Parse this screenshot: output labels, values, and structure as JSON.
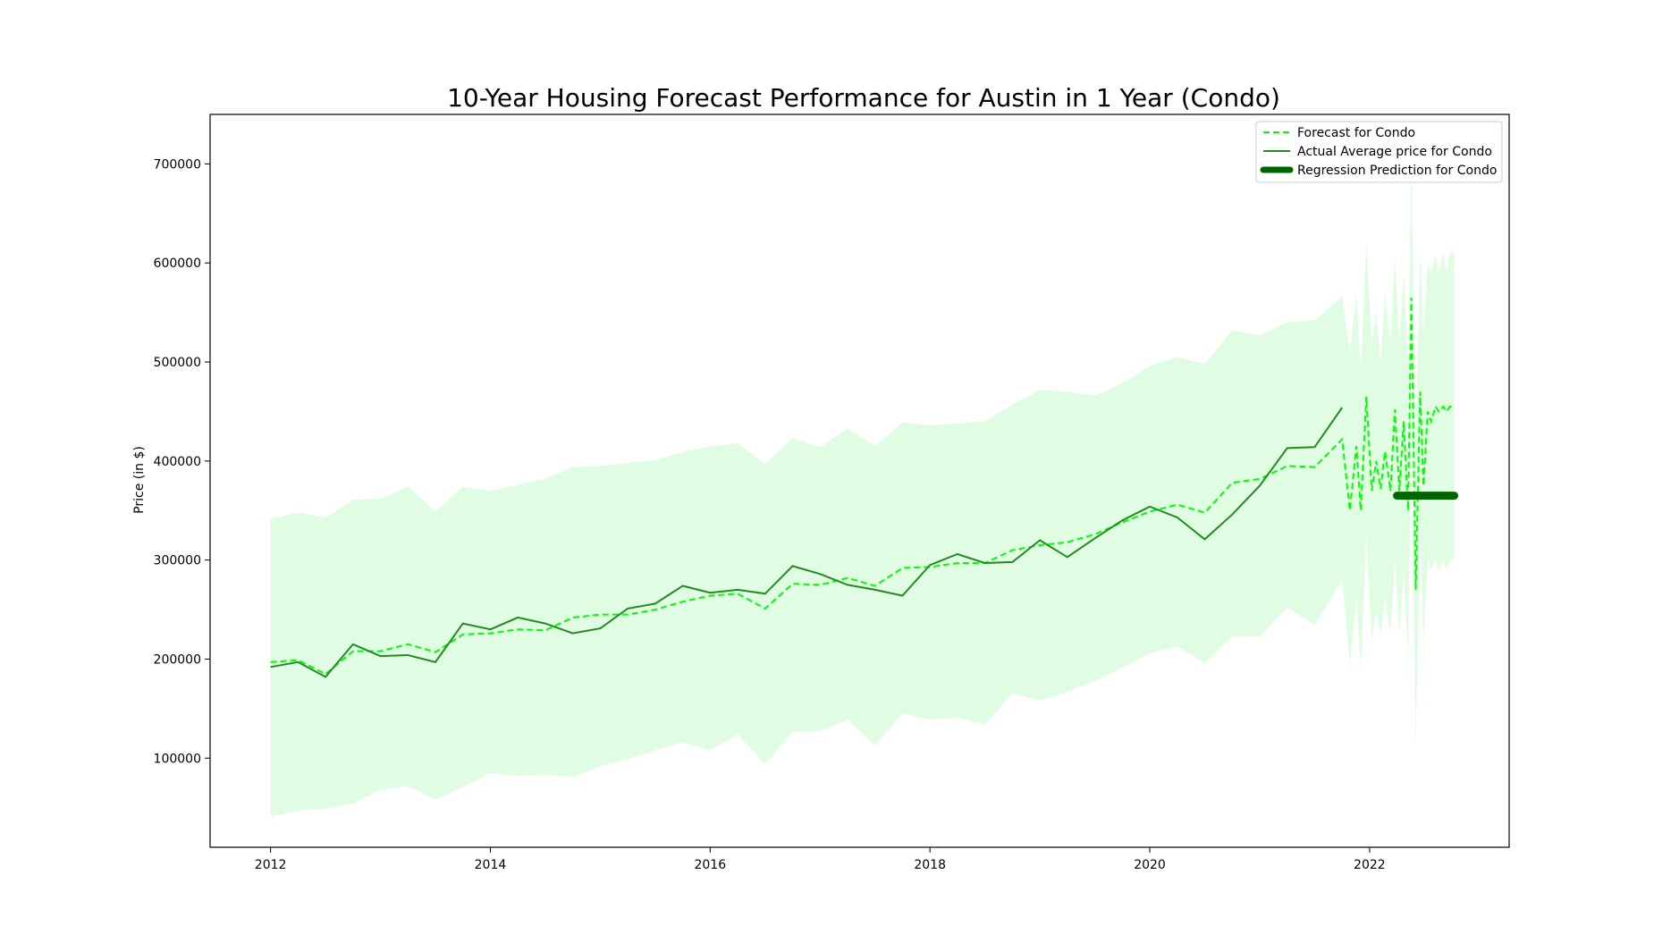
{
  "chart_data": {
    "type": "line",
    "title": "10-Year Housing Forecast Performance for Austin in 1 Year (Condo)",
    "xlabel": "",
    "ylabel": "Price (in $)",
    "xlim": [
      2011.45,
      2023.27
    ],
    "ylim": [
      10000,
      750000
    ],
    "x_ticks": [
      2012,
      2014,
      2016,
      2018,
      2020,
      2022
    ],
    "y_ticks": [
      100000,
      200000,
      300000,
      400000,
      500000,
      600000,
      700000
    ],
    "grid": false,
    "legend_position": "top-right",
    "colors": {
      "forecast": "#00ff00",
      "actual": "#228b22",
      "regression": "#006400",
      "band": "#e0fde3"
    },
    "series": [
      {
        "name": "Forecast for Condo",
        "style": "dashed",
        "x": [
          2012.0,
          2012.25,
          2012.5,
          2012.75,
          2013.0,
          2013.25,
          2013.5,
          2013.75,
          2014.0,
          2014.25,
          2014.5,
          2014.75,
          2015.0,
          2015.25,
          2015.5,
          2015.75,
          2016.0,
          2016.25,
          2016.5,
          2016.75,
          2017.0,
          2017.25,
          2017.5,
          2017.75,
          2018.0,
          2018.25,
          2018.5,
          2018.75,
          2019.0,
          2019.25,
          2019.5,
          2019.75,
          2020.0,
          2020.25,
          2020.5,
          2020.75,
          2021.0,
          2021.25,
          2021.5,
          2021.75,
          2021.82,
          2021.88,
          2021.92,
          2021.97,
          2022.02,
          2022.06,
          2022.1,
          2022.14,
          2022.19,
          2022.23,
          2022.27,
          2022.31,
          2022.35,
          2022.38,
          2022.42,
          2022.46,
          2022.49,
          2022.53,
          2022.56,
          2022.6,
          2022.63,
          2022.67,
          2022.7,
          2022.73,
          2022.77
        ],
        "values": [
          197000,
          199000,
          185000,
          208000,
          208000,
          215000,
          207000,
          225000,
          226000,
          230000,
          229000,
          242000,
          245000,
          245000,
          250000,
          258000,
          264000,
          266000,
          251000,
          276000,
          275000,
          282000,
          274000,
          292000,
          293000,
          297000,
          297000,
          310000,
          315000,
          318000,
          326000,
          338000,
          349000,
          356000,
          348000,
          378000,
          382000,
          395000,
          394000,
          422000,
          350000,
          415000,
          350000,
          465000,
          370000,
          400000,
          372000,
          410000,
          370000,
          452000,
          370000,
          440000,
          350000,
          565000,
          270000,
          470000,
          375000,
          450000,
          440000,
          455000,
          450000,
          455000,
          450000,
          455000,
          455000
        ]
      },
      {
        "name": "Actual Average price for Condo",
        "style": "solid",
        "x": [
          2012.0,
          2012.25,
          2012.5,
          2012.75,
          2013.0,
          2013.25,
          2013.5,
          2013.75,
          2014.0,
          2014.25,
          2014.5,
          2014.75,
          2015.0,
          2015.25,
          2015.5,
          2015.75,
          2016.0,
          2016.25,
          2016.5,
          2016.75,
          2017.0,
          2017.25,
          2017.5,
          2017.75,
          2018.0,
          2018.25,
          2018.5,
          2018.75,
          2019.0,
          2019.25,
          2019.5,
          2019.75,
          2020.0,
          2020.25,
          2020.5,
          2020.75,
          2021.0,
          2021.25,
          2021.5,
          2021.75
        ],
        "values": [
          192000,
          197000,
          182000,
          215000,
          203000,
          204000,
          197000,
          236000,
          230000,
          242000,
          236000,
          226000,
          231000,
          251000,
          256000,
          274000,
          267000,
          270000,
          266000,
          294000,
          286000,
          275000,
          270000,
          264000,
          295000,
          306000,
          297000,
          298000,
          320000,
          303000,
          322000,
          340000,
          354000,
          343000,
          321000,
          346000,
          375000,
          413000,
          414000,
          454000
        ]
      },
      {
        "name": "Regression Prediction for Condo",
        "style": "thick",
        "x": [
          2022.25,
          2022.77
        ],
        "values": [
          365000,
          365000
        ]
      }
    ],
    "confidence_band": {
      "x": [
        2012.0,
        2012.25,
        2012.5,
        2012.75,
        2013.0,
        2013.25,
        2013.5,
        2013.75,
        2014.0,
        2014.25,
        2014.5,
        2014.75,
        2015.0,
        2015.25,
        2015.5,
        2015.75,
        2016.0,
        2016.25,
        2016.5,
        2016.75,
        2017.0,
        2017.25,
        2017.5,
        2017.75,
        2018.0,
        2018.25,
        2018.5,
        2018.75,
        2019.0,
        2019.25,
        2019.5,
        2019.75,
        2020.0,
        2020.25,
        2020.5,
        2020.75,
        2021.0,
        2021.25,
        2021.5,
        2021.75,
        2021.82,
        2021.88,
        2021.92,
        2021.97,
        2022.02,
        2022.06,
        2022.1,
        2022.14,
        2022.19,
        2022.23,
        2022.27,
        2022.31,
        2022.35,
        2022.38,
        2022.42,
        2022.46,
        2022.49,
        2022.53,
        2022.56,
        2022.6,
        2022.63,
        2022.67,
        2022.7,
        2022.73,
        2022.77
      ],
      "upper": [
        342000,
        348000,
        343000,
        361000,
        362000,
        374000,
        349000,
        374000,
        370000,
        376000,
        382000,
        394000,
        395000,
        398000,
        401000,
        409000,
        415000,
        418000,
        397000,
        423000,
        414000,
        433000,
        415000,
        439000,
        436000,
        438000,
        440000,
        457000,
        472000,
        470000,
        466000,
        478000,
        496000,
        505000,
        498000,
        532000,
        527000,
        540000,
        542000,
        566000,
        510000,
        570000,
        490000,
        620000,
        520000,
        550000,
        500000,
        570000,
        520000,
        605000,
        520000,
        590000,
        500000,
        700000,
        430000,
        610000,
        530000,
        600000,
        590000,
        610000,
        590000,
        610000,
        590000,
        610000,
        610000
      ],
      "lower": [
        41000,
        47000,
        49000,
        54000,
        68000,
        72000,
        58000,
        71000,
        85000,
        82000,
        83000,
        81000,
        92000,
        99000,
        108000,
        116000,
        108000,
        124000,
        94000,
        127000,
        127000,
        139000,
        113000,
        145000,
        139000,
        141000,
        134000,
        165000,
        158000,
        167000,
        178000,
        191000,
        206000,
        213000,
        196000,
        223000,
        223000,
        252000,
        234000,
        280000,
        195000,
        262000,
        193000,
        325000,
        220000,
        250000,
        225000,
        260000,
        225000,
        300000,
        225000,
        290000,
        200000,
        430000,
        115000,
        330000,
        220000,
        300000,
        290000,
        300000,
        290000,
        300000,
        290000,
        300000,
        300000
      ]
    }
  }
}
